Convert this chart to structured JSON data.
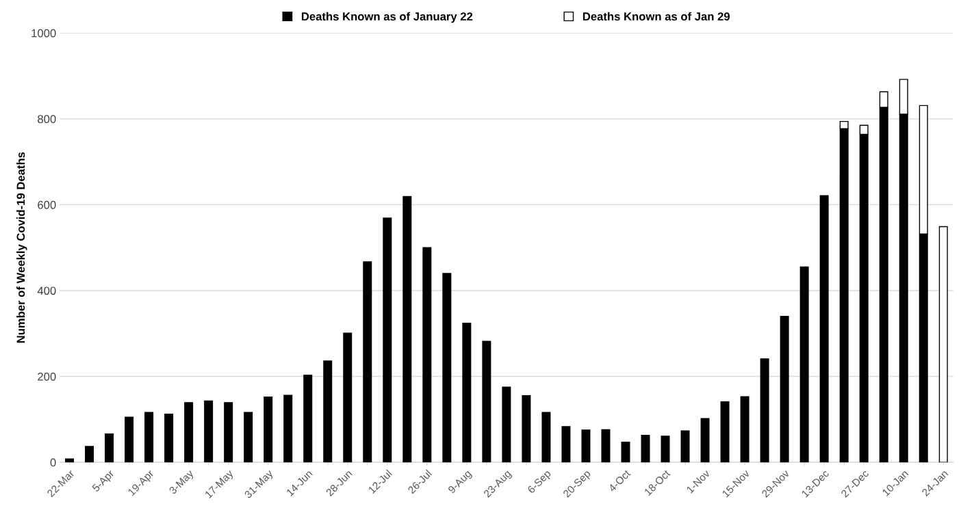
{
  "chart_data": {
    "type": "bar",
    "stacked": true,
    "ylabel": "Number of Weekly Covid-19 Deaths",
    "categories": [
      "22-Mar",
      null,
      "5-Apr",
      null,
      "19-Apr",
      null,
      "3-May",
      null,
      "17-May",
      null,
      "31-May",
      null,
      "14-Jun",
      null,
      "28-Jun",
      null,
      "12-Jul",
      null,
      "26-Jul",
      null,
      "9-Aug",
      null,
      "23-Aug",
      null,
      "6-Sep",
      null,
      "20-Sep",
      null,
      "4-Oct",
      null,
      "18-Oct",
      null,
      "1-Nov",
      null,
      "15-Nov",
      null,
      "29-Nov",
      null,
      "13-Dec",
      null,
      "27-Dec",
      null,
      "10-Jan",
      null,
      "24-Jan"
    ],
    "series": [
      {
        "name": "Deaths Known as of January 22",
        "color": "#000000",
        "values": [
          8,
          37,
          66,
          105,
          116,
          112,
          139,
          143,
          139,
          116,
          152,
          156,
          203,
          236,
          301,
          467,
          569,
          619,
          500,
          440,
          324,
          282,
          175,
          155,
          116,
          83,
          75,
          76,
          47,
          63,
          61,
          73,
          102,
          141,
          153,
          241,
          340,
          455,
          621,
          777,
          764,
          827,
          811,
          532,
          null
        ]
      },
      {
        "name": "Deaths Known as of Jan 29",
        "color": "#ffffff",
        "values": [
          null,
          null,
          null,
          null,
          null,
          null,
          null,
          null,
          null,
          null,
          null,
          null,
          null,
          null,
          null,
          null,
          null,
          null,
          null,
          null,
          null,
          null,
          null,
          null,
          null,
          null,
          null,
          null,
          null,
          null,
          null,
          null,
          null,
          null,
          null,
          null,
          null,
          null,
          null,
          17,
          21,
          36,
          81,
          299,
          549
        ]
      }
    ],
    "ylim": [
      0,
      1000
    ],
    "yticks": [
      0,
      200,
      400,
      600,
      800,
      1000
    ],
    "grid": "y",
    "legend": "top"
  }
}
